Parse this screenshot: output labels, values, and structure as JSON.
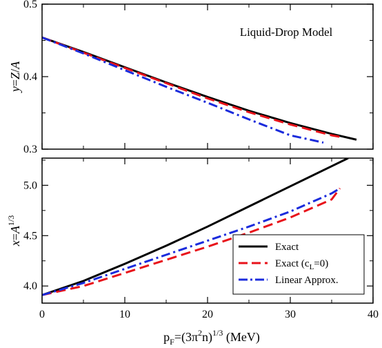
{
  "chart_data": {
    "type": "line",
    "shared_x": {
      "label": "p_F=(3π²n)^{1/3} (MeV)",
      "label_parts": {
        "p": "p",
        "sub": "F",
        "eq": "=(3π",
        "sup2": "2",
        "n": "n)",
        "sup13": "1/3",
        "unit": " (MeV)"
      },
      "lim": [
        0,
        40
      ],
      "ticks": [
        0,
        10,
        20,
        30,
        40
      ],
      "tick_labels": [
        "0",
        "10",
        "20",
        "30",
        "40"
      ]
    },
    "annotation": "Liquid-Drop Model",
    "legend": {
      "placement": "lower-right (bottom panel)",
      "entries": [
        "Exact",
        "Exact (c_L=0)",
        "Linear Approx."
      ],
      "entry_parts": [
        {
          "text": "Exact"
        },
        {
          "pre": "Exact (c",
          "sub": "L",
          "post": "=0)"
        },
        {
          "text": "Linear Approx."
        }
      ]
    },
    "styles": {
      "Exact": {
        "color": "#000000",
        "dash": "solid"
      },
      "Exact (c_L=0)": {
        "color": "#e8121a",
        "dash": "dashed"
      },
      "Linear Approx.": {
        "color": "#1a2bdc",
        "dash": "dash-dot"
      }
    },
    "panels": [
      {
        "id": "top",
        "ylabel": "y=Z/A",
        "ylabel_parts": {
          "y": "y",
          "mid": "=",
          "z": "Z",
          "slash": "/",
          "a": "A"
        },
        "ylim": [
          0.3,
          0.5
        ],
        "yticks": [
          0.3,
          0.4,
          0.5
        ],
        "ytick_labels": [
          "0.3",
          "0.4",
          "0.5"
        ],
        "series": [
          {
            "name": "Exact",
            "x": [
              0,
              5,
              10,
              15,
              20,
              25,
              30,
              35,
              38
            ],
            "y": [
              0.454,
              0.434,
              0.413,
              0.392,
              0.372,
              0.353,
              0.336,
              0.321,
              0.313
            ]
          },
          {
            "name": "Exact (c_L=0)",
            "x": [
              0,
              5,
              10,
              15,
              20,
              25,
              30,
              35,
              36
            ],
            "y": [
              0.454,
              0.433,
              0.412,
              0.391,
              0.37,
              0.351,
              0.334,
              0.319,
              0.317
            ]
          },
          {
            "name": "Linear Approx.",
            "x": [
              0,
              5,
              10,
              15,
              20,
              25,
              30,
              34
            ],
            "y": [
              0.454,
              0.432,
              0.409,
              0.386,
              0.364,
              0.341,
              0.319,
              0.309
            ]
          }
        ]
      },
      {
        "id": "bottom",
        "ylabel": "x=A^{1/3}",
        "ylabel_parts": {
          "x": "x",
          "mid": "=",
          "a": "A",
          "sup": "1/3"
        },
        "ylim": [
          3.83,
          5.27
        ],
        "yticks": [
          4.0,
          4.5,
          5.0
        ],
        "ytick_labels": [
          "4.0",
          "4.5",
          "5.0"
        ],
        "series": [
          {
            "name": "Exact",
            "x": [
              0,
              5,
              10,
              15,
              20,
              25,
              30,
              35,
              37
            ],
            "y": [
              3.91,
              4.05,
              4.22,
              4.4,
              4.59,
              4.79,
              4.99,
              5.19,
              5.27
            ]
          },
          {
            "name": "Exact (c_L=0)",
            "x": [
              0,
              5,
              10,
              15,
              20,
              25,
              30,
              35,
              36
            ],
            "y": [
              3.91,
              4.0,
              4.13,
              4.26,
              4.39,
              4.53,
              4.68,
              4.86,
              4.97
            ]
          },
          {
            "name": "Linear Approx.",
            "x": [
              0,
              5,
              10,
              15,
              20,
              25,
              30,
              35,
              36
            ],
            "y": [
              3.91,
              4.03,
              4.17,
              4.31,
              4.45,
              4.59,
              4.74,
              4.92,
              4.97
            ]
          }
        ]
      }
    ]
  }
}
